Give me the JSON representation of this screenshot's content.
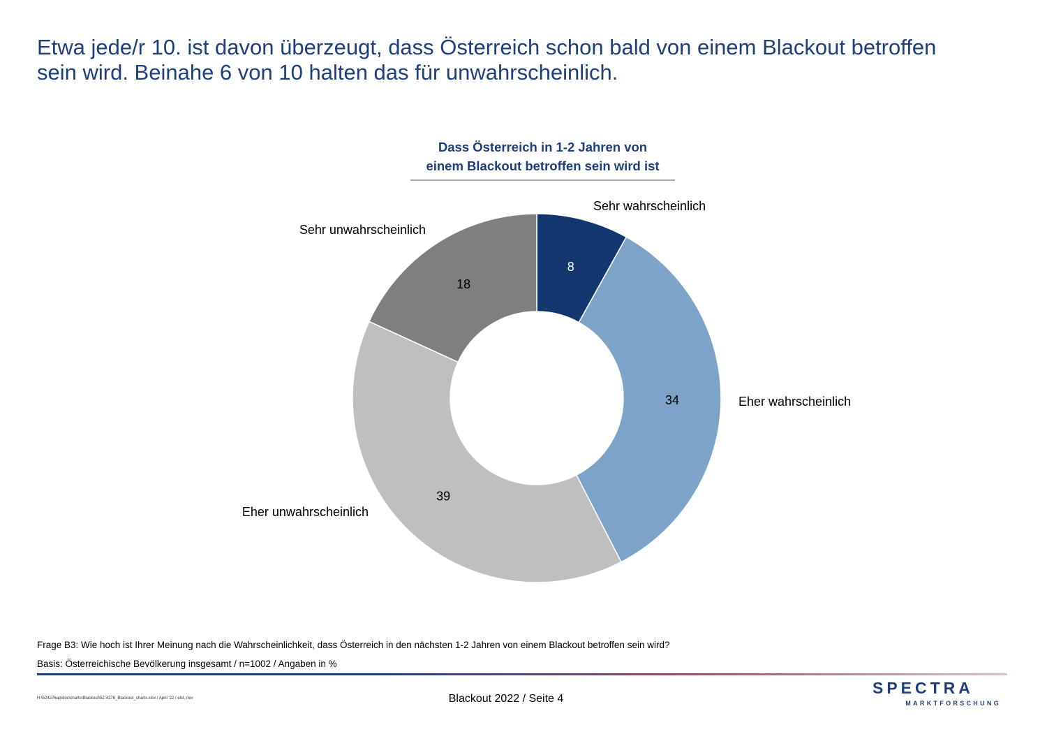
{
  "headline": {
    "line1": "Etwa jede/r 10. ist davon überzeugt, dass Österreich schon bald von einem Blackout betroffen",
    "line2": "sein wird. Beinahe 6 von 10 halten das für unwahrscheinlich."
  },
  "chart_data": {
    "type": "pie",
    "variant": "donut",
    "title_line1": "Dass Österreich in 1-2 Jahren von",
    "title_line2": "einem Blackout betroffen sein wird ist",
    "unit": "%",
    "slices": [
      {
        "label": "Sehr wahrscheinlich",
        "value": 8,
        "color": "#14366e",
        "value_label_color": "#ffffff"
      },
      {
        "label": "Eher wahrscheinlich",
        "value": 34,
        "color": "#7ea3c9",
        "value_label_color": "#000000"
      },
      {
        "label": "Eher unwahrscheinlich",
        "value": 39,
        "color": "#bfbfbf",
        "value_label_color": "#000000"
      },
      {
        "label": "Sehr unwahrscheinlich",
        "value": 18,
        "color": "#7f7f7f",
        "value_label_color": "#000000"
      }
    ],
    "start": "12 o'clock",
    "direction": "clockwise"
  },
  "footer": {
    "question": "Frage B3: Wie hoch ist Ihrer Meinung nach die Wahrscheinlichkeit, dass Österreich in den nächsten 1-2 Jahren von einem Blackout betroffen sein wird?",
    "basis": "Basis: Österreichische Bevölkerung insgesamt / n=1002 / Angaben in %",
    "file_path": "H:\\524276ap\\doc\\charts\\Blackout\\52-4276_Blackout_charts.xlsx / April '22 / elst, riev",
    "page_label": "Blackout 2022  /  Seite  4"
  },
  "logo": {
    "wordmark": "SPECTRA",
    "subline": "MARKTFORSCHUNG",
    "color": "#1f3f7a",
    "accent_color": "#c8102e"
  }
}
